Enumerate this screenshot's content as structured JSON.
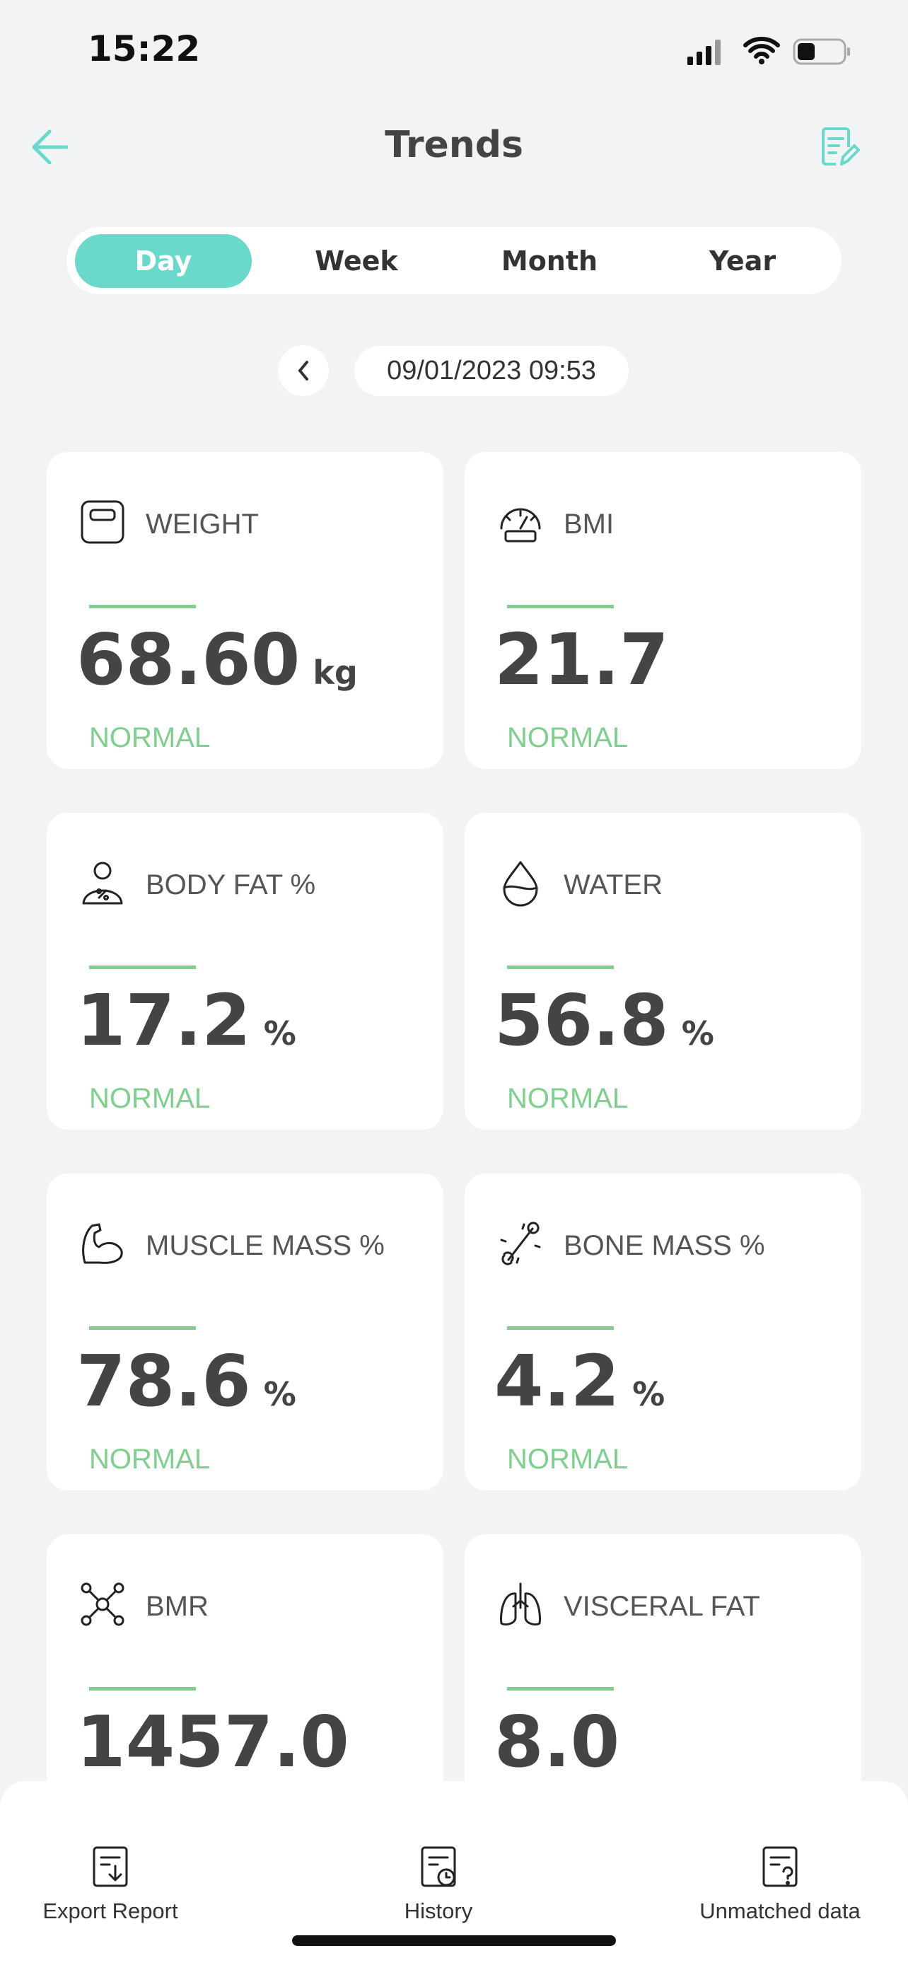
{
  "status_bar": {
    "time": "15:22"
  },
  "header": {
    "title": "Trends"
  },
  "tabs": [
    "Day",
    "Week",
    "Month",
    "Year"
  ],
  "date": "09/01/2023 09:53",
  "cards": [
    {
      "label": "WEIGHT",
      "value": "68.60",
      "unit": "kg",
      "status": "NORMAL"
    },
    {
      "label": "BMI",
      "value": "21.7",
      "status": "NORMAL"
    },
    {
      "label": "BODY FAT %",
      "value": "17.2",
      "unit": "%",
      "status": "NORMAL"
    },
    {
      "label": "WATER",
      "value": "56.8",
      "unit": "%",
      "status": "NORMAL"
    },
    {
      "label": "MUSCLE MASS %",
      "value": "78.6",
      "unit": "%",
      "status": "NORMAL"
    },
    {
      "label": "BONE MASS %",
      "value": "4.2",
      "unit": "%",
      "status": "NORMAL"
    },
    {
      "label": "BMR",
      "value": "1457.0"
    },
    {
      "label": "VISCERAL FAT",
      "value": "8.0"
    }
  ],
  "bottom_bar": [
    "Export Report",
    "History",
    "Unmatched data"
  ]
}
